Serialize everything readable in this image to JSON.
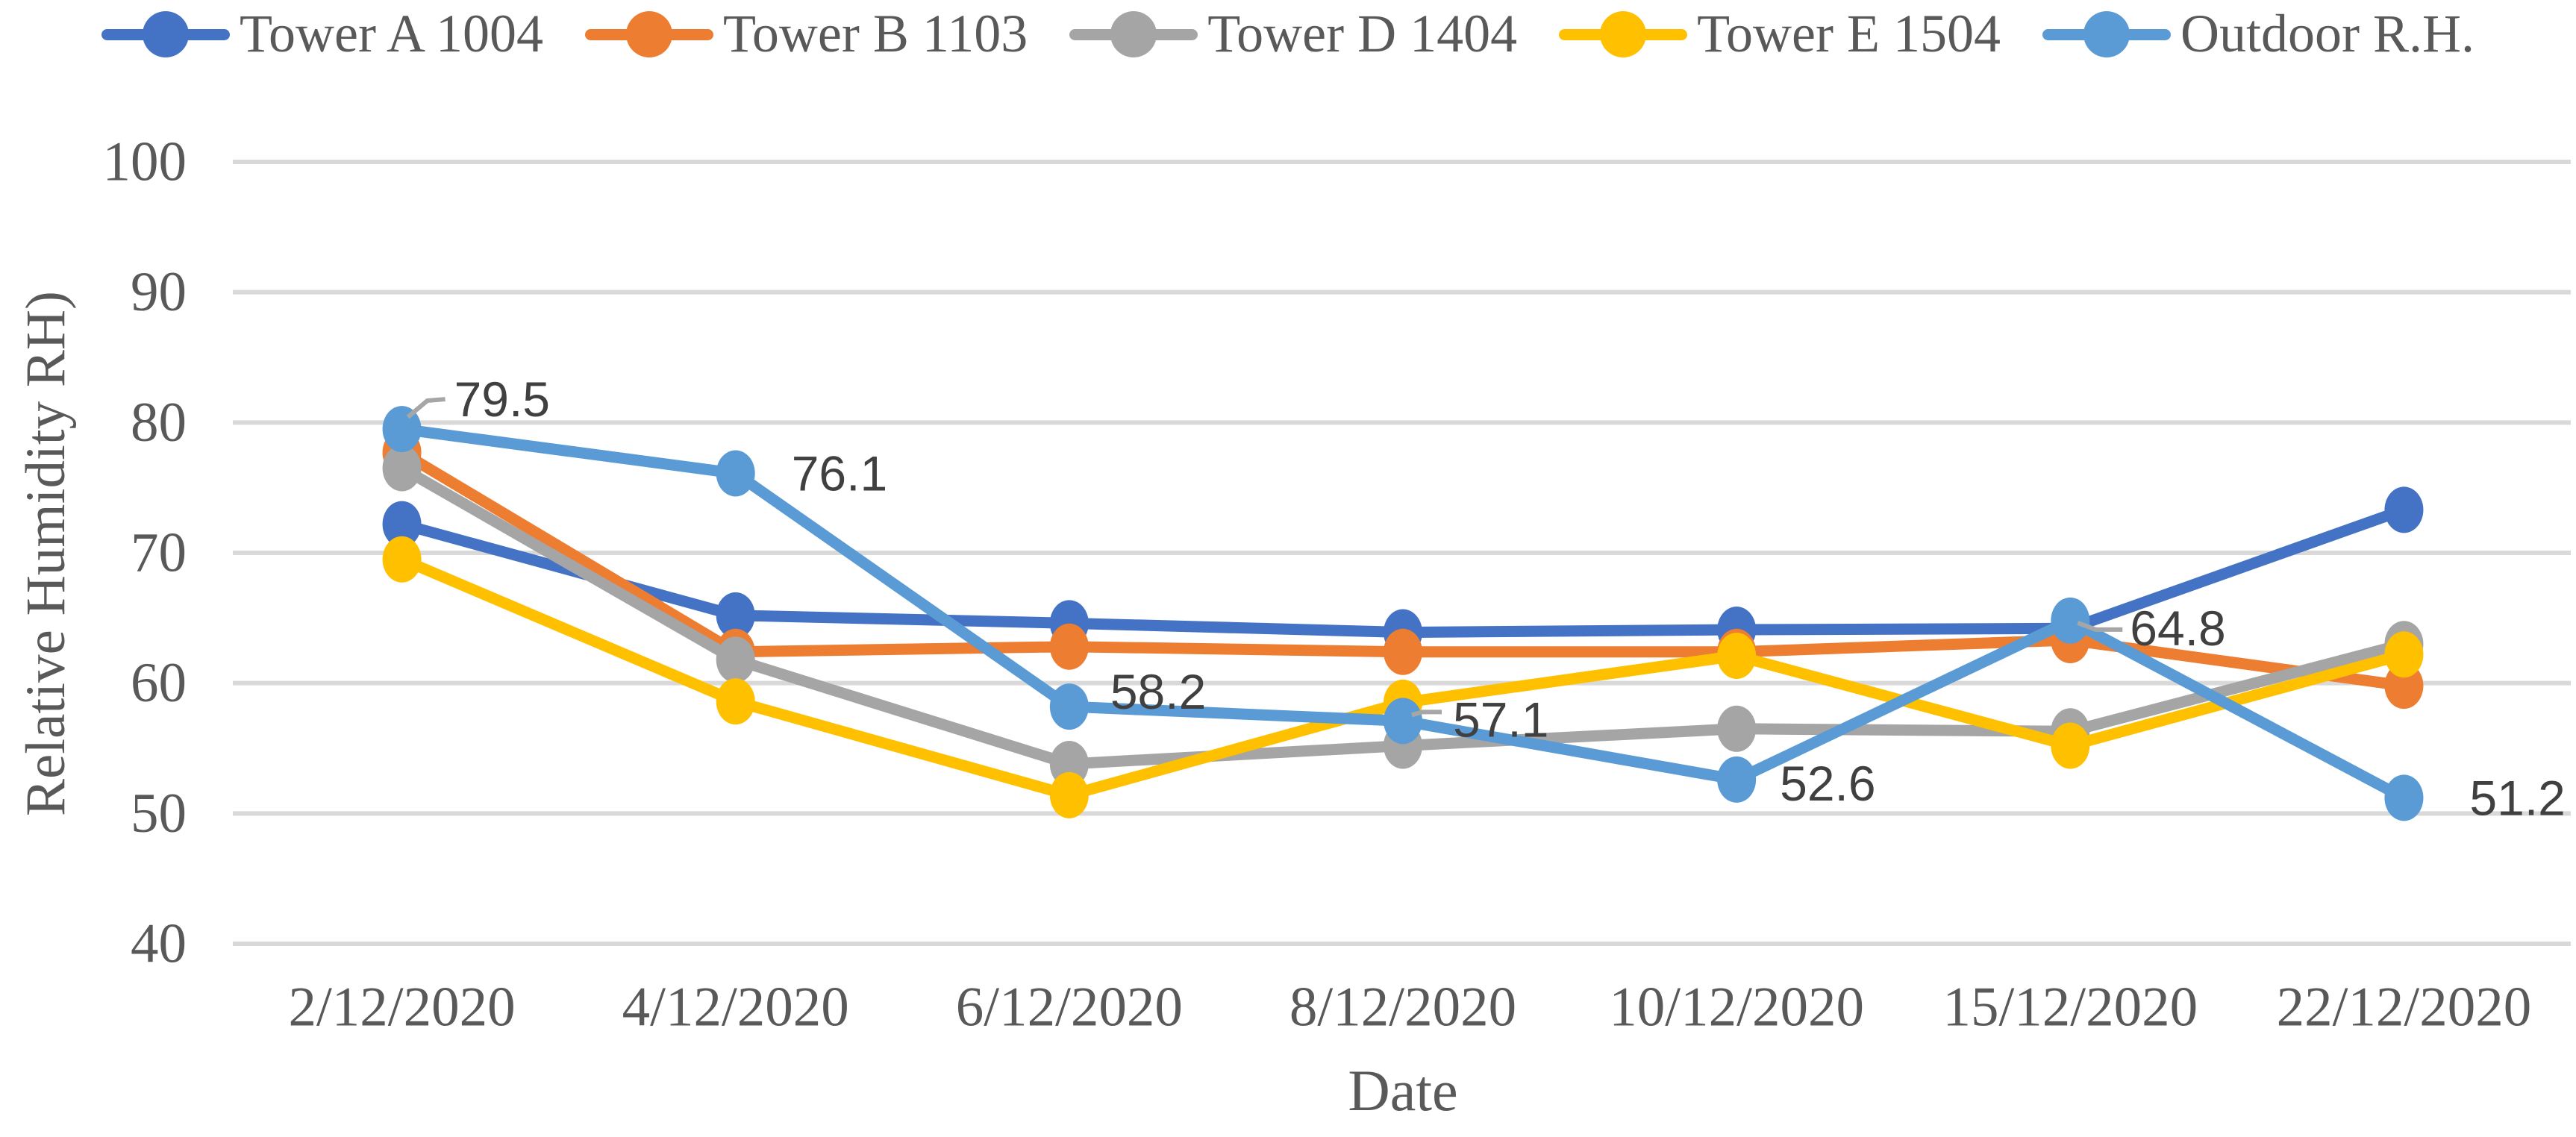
{
  "chart_data": {
    "type": "line",
    "title": "",
    "categories": [
      "2/12/2020",
      "4/12/2020",
      "6/12/2020",
      "8/12/2020",
      "10/12/2020",
      "15/12/2020",
      "22/12/2020"
    ],
    "series": [
      {
        "name": "Tower A 1004",
        "color": "#4472C4",
        "values": [
          72.2,
          65.2,
          64.6,
          63.9,
          64.1,
          64.2,
          73.3
        ]
      },
      {
        "name": "Tower B 1103",
        "color": "#ED7D31",
        "values": [
          77.7,
          62.4,
          62.8,
          62.4,
          62.4,
          63.3,
          59.8
        ]
      },
      {
        "name": "Tower D 1404",
        "color": "#A5A5A5",
        "values": [
          76.5,
          61.8,
          53.8,
          55.2,
          56.5,
          56.3,
          63.0
        ]
      },
      {
        "name": "Tower E 1504",
        "color": "#FFC000",
        "values": [
          69.5,
          58.6,
          51.4,
          58.5,
          62.1,
          55.2,
          62.2
        ]
      },
      {
        "name": "Outdoor R.H.",
        "color": "#5B9BD5",
        "values": [
          79.5,
          76.1,
          58.2,
          57.1,
          52.6,
          64.8,
          51.2
        ],
        "data_labels": [
          "79.5",
          "76.1",
          "58.2",
          "57.1",
          "52.6",
          "64.8",
          "51.2"
        ]
      }
    ],
    "xlabel": "Date",
    "ylabel": "Relative Humidity RH)",
    "ylim": [
      40,
      100
    ],
    "yticks": [
      100,
      90,
      80,
      70,
      60,
      50,
      40
    ],
    "grid": "horizontal",
    "legend_position": "top",
    "marker": "circle"
  },
  "colors": {
    "background": "#FFFFFF",
    "gridline": "#D9D9D9",
    "axis_text": "#595959",
    "data_label_text": "#404040",
    "leader_line": "#A6A6A6"
  }
}
